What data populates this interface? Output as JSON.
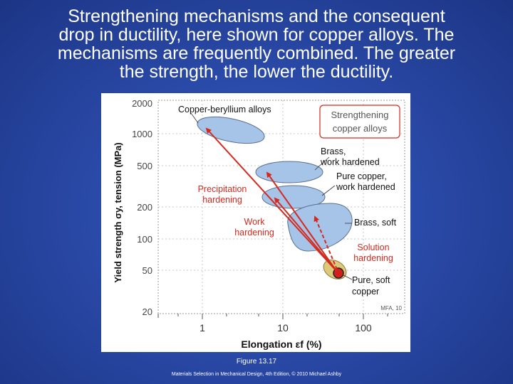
{
  "slide": {
    "title_lines": [
      "Strengthening mechanisms and the consequent",
      "drop in ductility, here shown for copper alloys. The",
      "mechanisms are frequently combined. The greater",
      "the strength, the lower the ductility."
    ],
    "caption": "Figure 13.17",
    "credit": "Materials Selection in Mechanical Design, 4th Edition, © 2010 Michael Ashby"
  },
  "figure": {
    "y_axis_label": "Yield strength σy, tension (MPa)",
    "x_axis_label": "Elongation εf (%)",
    "y_ticks": [
      "2000",
      "1000",
      "500",
      "200",
      "100",
      "50",
      "20"
    ],
    "x_ticks": [
      "1",
      "10",
      "100"
    ],
    "box_label_lines": [
      "Strengthening",
      "copper alloys"
    ],
    "watermark": "MFA, 10",
    "labels": {
      "cu_be": "Copper-beryllium alloys",
      "brass_wh_1": "Brass,",
      "brass_wh_2": "work hardened",
      "pure_wh_1": "Pure copper,",
      "pure_wh_2": "work hardened",
      "brass_soft": "Brass, soft",
      "pure_soft_1": "Pure, soft",
      "pure_soft_2": "copper",
      "precip_1": "Precipitation",
      "precip_2": "hardening",
      "work_1": "Work",
      "work_2": "hardening",
      "solution_1": "Solution",
      "solution_2": "hardening"
    },
    "colors": {
      "ellipse_fill": "#a6c3e8",
      "ellipse_stroke": "#5a6f90",
      "arrow": "#d42a1e",
      "red_text": "#d42a1e",
      "soft_fill": "#dcc97a",
      "dot_fill": "#d41e1e"
    }
  }
}
